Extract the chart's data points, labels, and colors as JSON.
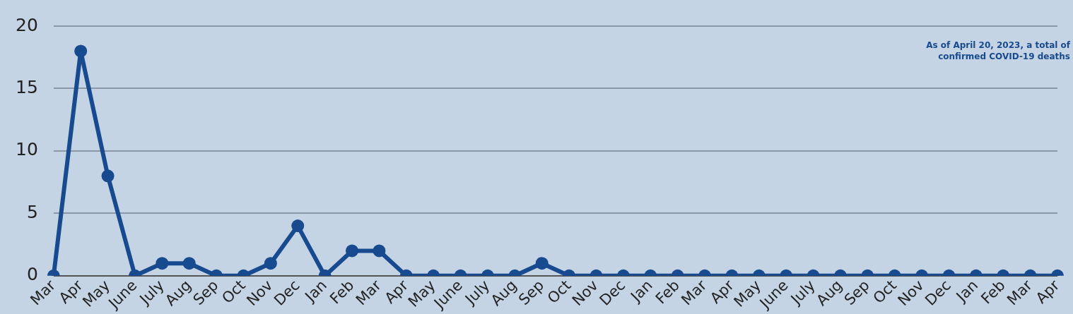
{
  "chart_data": {
    "type": "line",
    "categories": [
      "Mar",
      "Apr",
      "May",
      "June",
      "July",
      "Aug",
      "Sep",
      "Oct",
      "Nov",
      "Dec",
      "Jan",
      "Feb",
      "Mar",
      "Apr",
      "May",
      "June",
      "July",
      "Aug",
      "Sep",
      "Oct",
      "Nov",
      "Dec",
      "Jan",
      "Feb",
      "Mar",
      "Apr",
      "May",
      "June",
      "July",
      "Aug",
      "Sep",
      "Oct",
      "Nov",
      "Dec",
      "Jan",
      "Feb",
      "Mar",
      "Apr"
    ],
    "series": [
      {
        "color": "#174a8f",
        "values": [
          0,
          18,
          8,
          0,
          1,
          1,
          0,
          0,
          1,
          4,
          0,
          2,
          2,
          0,
          0,
          0,
          0,
          0,
          1,
          0,
          0,
          0,
          0,
          0,
          0,
          0,
          0,
          0,
          0,
          0,
          0,
          0,
          0,
          0,
          0,
          0,
          0,
          0
        ]
      }
    ],
    "ylim": [
      0,
      20
    ],
    "yticks": [
      0,
      5,
      10,
      15,
      20
    ],
    "grid": "y",
    "legend": false,
    "marker": "circle",
    "line_style": "solid",
    "annotations": [
      "As of April 20, 2023, a total of confirmed COVID-19 deaths"
    ]
  }
}
